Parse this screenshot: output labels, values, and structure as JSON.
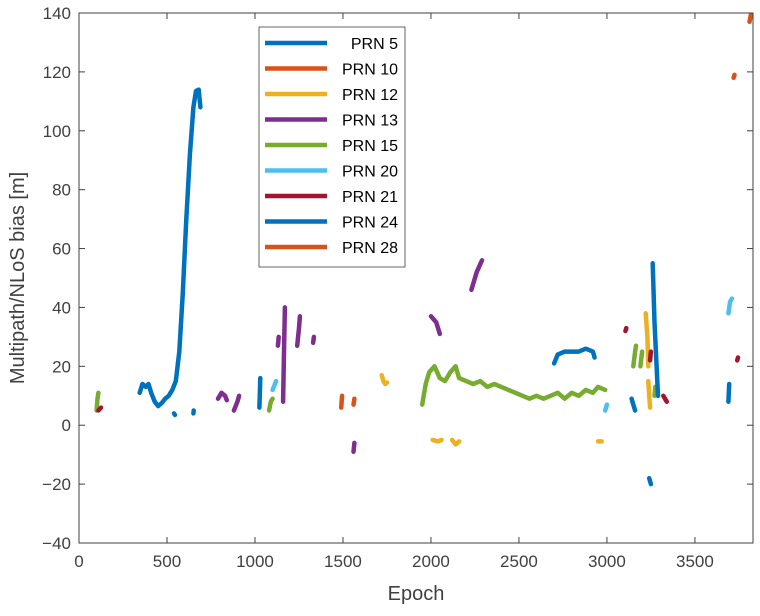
{
  "chart_data": {
    "type": "line",
    "title": "",
    "xlabel": "Epoch",
    "ylabel": "Multipath/NLoS bias [m]",
    "xlim": [
      0,
      3830
    ],
    "ylim": [
      -40,
      140
    ],
    "xticks": [
      0,
      500,
      1000,
      1500,
      2000,
      2500,
      3000,
      3500
    ],
    "yticks": [
      -40,
      -20,
      0,
      20,
      40,
      60,
      80,
      100,
      120,
      140
    ],
    "xtick_labels": [
      "0",
      "500",
      "1000",
      "1500",
      "2000",
      "2500",
      "3000",
      "3500"
    ],
    "ytick_labels": [
      "−40",
      "−20",
      "0",
      "20",
      "40",
      "60",
      "80",
      "100",
      "120",
      "140"
    ],
    "grid": false,
    "legend_position": "upper-left-inside",
    "series": [
      {
        "name": "PRN 5",
        "color": "#0072BD",
        "segments": [
          [
            [
              345,
              11
            ],
            [
              360,
              14
            ],
            [
              380,
              13
            ],
            [
              395,
              14
            ],
            [
              410,
              11
            ],
            [
              430,
              8
            ],
            [
              450,
              6.5
            ],
            [
              470,
              7.5
            ],
            [
              490,
              9
            ],
            [
              510,
              10
            ],
            [
              530,
              12
            ],
            [
              550,
              15
            ],
            [
              570,
              25
            ],
            [
              590,
              45
            ],
            [
              610,
              70
            ],
            [
              630,
              92
            ],
            [
              650,
              108
            ],
            [
              665,
              113.5
            ],
            [
              680,
              114
            ],
            [
              690,
              108
            ]
          ],
          [
            [
              540,
              4
            ],
            [
              545,
              3.5
            ]
          ],
          [
            [
              650,
              4
            ],
            [
              652,
              5
            ]
          ]
        ]
      },
      {
        "name": "PRN 10",
        "color": "#D95319",
        "segments": [
          [
            [
              1490,
              6
            ],
            [
              1495,
              10
            ]
          ],
          [
            [
              1560,
              7
            ],
            [
              1565,
              9
            ]
          ]
        ]
      },
      {
        "name": "PRN 12",
        "color": "#EDB120",
        "segments": [
          [
            [
              1720,
              17
            ],
            [
              1730,
              15
            ],
            [
              1740,
              14
            ],
            [
              1750,
              14.5
            ]
          ],
          [
            [
              2010,
              -5
            ],
            [
              2040,
              -5.5
            ],
            [
              2060,
              -5
            ]
          ],
          [
            [
              2120,
              -5
            ],
            [
              2140,
              -6.5
            ],
            [
              2160,
              -5.5
            ]
          ],
          [
            [
              2950,
              -5.5
            ],
            [
              2970,
              -5.5
            ]
          ],
          [
            [
              3220,
              38
            ],
            [
              3230,
              30
            ],
            [
              3235,
              20
            ]
          ],
          [
            [
              3235,
              15
            ],
            [
              3240,
              10
            ],
            [
              3245,
              6
            ]
          ]
        ]
      },
      {
        "name": "PRN 13",
        "color": "#7E2F8E",
        "segments": [
          [
            [
              790,
              9
            ],
            [
              810,
              11
            ],
            [
              830,
              10
            ],
            [
              840,
              8.5
            ]
          ],
          [
            [
              880,
              5
            ],
            [
              900,
              8
            ],
            [
              910,
              10
            ]
          ],
          [
            [
              1160,
              8
            ],
            [
              1165,
              25
            ],
            [
              1170,
              40
            ]
          ],
          [
            [
              1130,
              27
            ],
            [
              1135,
              30
            ]
          ],
          [
            [
              1240,
              27
            ],
            [
              1250,
              33
            ],
            [
              1255,
              37
            ]
          ],
          [
            [
              1330,
              28
            ],
            [
              1335,
              30
            ]
          ],
          [
            [
              2000,
              37
            ],
            [
              2030,
              35
            ],
            [
              2050,
              31
            ]
          ],
          [
            [
              2230,
              46
            ],
            [
              2260,
              52
            ],
            [
              2290,
              56
            ]
          ],
          [
            [
              1560,
              -9
            ],
            [
              1565,
              -6
            ]
          ]
        ]
      },
      {
        "name": "PRN 15",
        "color": "#77AC30",
        "segments": [
          [
            [
              100,
              5
            ],
            [
              105,
              9
            ],
            [
              110,
              11
            ]
          ],
          [
            [
              1080,
              5
            ],
            [
              1090,
              8
            ],
            [
              1100,
              9
            ]
          ],
          [
            [
              1950,
              7
            ],
            [
              1970,
              14
            ],
            [
              1990,
              18
            ],
            [
              2020,
              20
            ],
            [
              2050,
              16
            ],
            [
              2080,
              15
            ],
            [
              2110,
              18
            ],
            [
              2140,
              20
            ],
            [
              2160,
              16
            ],
            [
              2200,
              15
            ],
            [
              2240,
              14
            ],
            [
              2280,
              15
            ],
            [
              2320,
              13
            ],
            [
              2360,
              14
            ],
            [
              2400,
              13
            ],
            [
              2440,
              12
            ],
            [
              2480,
              11
            ],
            [
              2520,
              10
            ],
            [
              2560,
              9
            ],
            [
              2600,
              10
            ],
            [
              2640,
              9
            ],
            [
              2680,
              10
            ],
            [
              2720,
              11
            ],
            [
              2760,
              9
            ],
            [
              2800,
              11
            ],
            [
              2840,
              10
            ],
            [
              2880,
              12
            ],
            [
              2920,
              11
            ],
            [
              2950,
              13
            ],
            [
              2990,
              12
            ]
          ],
          [
            [
              3150,
              20
            ],
            [
              3160,
              25
            ],
            [
              3165,
              27
            ]
          ],
          [
            [
              3190,
              20
            ],
            [
              3200,
              25
            ]
          ],
          [
            [
              3270,
              10
            ],
            [
              3275,
              13
            ]
          ]
        ]
      },
      {
        "name": "PRN 20",
        "color": "#4DBEEE",
        "segments": [
          [
            [
              2990,
              5
            ],
            [
              3000,
              7
            ]
          ],
          [
            [
              3690,
              38
            ],
            [
              3700,
              42
            ],
            [
              3710,
              43
            ]
          ],
          [
            [
              1100,
              12
            ],
            [
              1120,
              15
            ]
          ]
        ]
      },
      {
        "name": "PRN 21",
        "color": "#A2142F",
        "segments": [
          [
            [
              110,
              5
            ],
            [
              125,
              6
            ]
          ],
          [
            [
              3105,
              32
            ],
            [
              3110,
              33
            ]
          ],
          [
            [
              3245,
              22
            ],
            [
              3250,
              25
            ]
          ],
          [
            [
              3320,
              10
            ],
            [
              3340,
              8
            ]
          ],
          [
            [
              3740,
              22
            ],
            [
              3745,
              23
            ]
          ]
        ]
      },
      {
        "name": "PRN 24",
        "color": "#0072BD",
        "segments": [
          [
            [
              1025,
              6
            ],
            [
              1030,
              16
            ]
          ],
          [
            [
              2700,
              21
            ],
            [
              2720,
              24
            ],
            [
              2760,
              25
            ],
            [
              2800,
              25
            ],
            [
              2840,
              25
            ],
            [
              2880,
              26
            ],
            [
              2920,
              25
            ],
            [
              2930,
              23
            ]
          ],
          [
            [
              3140,
              9
            ],
            [
              3150,
              7
            ],
            [
              3160,
              5
            ]
          ],
          [
            [
              3260,
              55
            ],
            [
              3270,
              35
            ],
            [
              3290,
              10
            ]
          ],
          [
            [
              3690,
              8
            ],
            [
              3695,
              14
            ]
          ],
          [
            [
              3240,
              -18
            ],
            [
              3250,
              -20
            ]
          ]
        ]
      },
      {
        "name": "PRN 28",
        "color": "#D95319",
        "segments": [
          [
            [
              3720,
              118
            ],
            [
              3725,
              119
            ]
          ],
          [
            [
              3810,
              137
            ],
            [
              3820,
              140
            ]
          ]
        ]
      }
    ]
  },
  "legend": {
    "items": [
      {
        "label": "PRN 5",
        "color": "#0072BD"
      },
      {
        "label": "PRN 10",
        "color": "#D95319"
      },
      {
        "label": "PRN 12",
        "color": "#EDB120"
      },
      {
        "label": "PRN 13",
        "color": "#7E2F8E"
      },
      {
        "label": "PRN 15",
        "color": "#77AC30"
      },
      {
        "label": "PRN 20",
        "color": "#4DBEEE"
      },
      {
        "label": "PRN 21",
        "color": "#A2142F"
      },
      {
        "label": "PRN 24",
        "color": "#0072BD"
      },
      {
        "label": "PRN 28",
        "color": "#D95319"
      }
    ]
  },
  "colors": {
    "axis": "#404040",
    "background": "#ffffff"
  }
}
